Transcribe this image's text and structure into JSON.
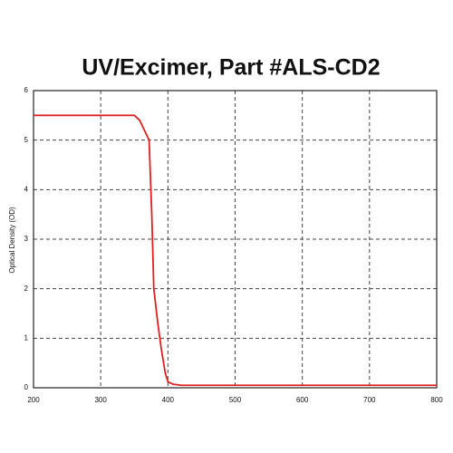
{
  "chart_data": {
    "type": "line",
    "title": "UV/Excimer, Part #ALS-CD2",
    "ylabel": "Optical Density (OD)",
    "x": [
      200,
      350,
      358,
      365,
      372,
      376,
      379,
      385,
      390,
      396,
      400,
      408,
      420,
      800
    ],
    "series": [
      {
        "color": "#e02020",
        "values": [
          5.5,
          5.5,
          5.4,
          5.2,
          5.0,
          3.5,
          2.0,
          1.3,
          0.8,
          0.3,
          0.12,
          0.07,
          0.05,
          0.05
        ]
      }
    ],
    "xlim": [
      200,
      800
    ],
    "xticks": [
      200,
      300,
      400,
      500,
      600,
      700,
      800
    ],
    "ylim": [
      0,
      6
    ],
    "yticks": [
      0,
      1,
      2,
      3,
      4,
      5,
      6
    ],
    "grid": true
  }
}
